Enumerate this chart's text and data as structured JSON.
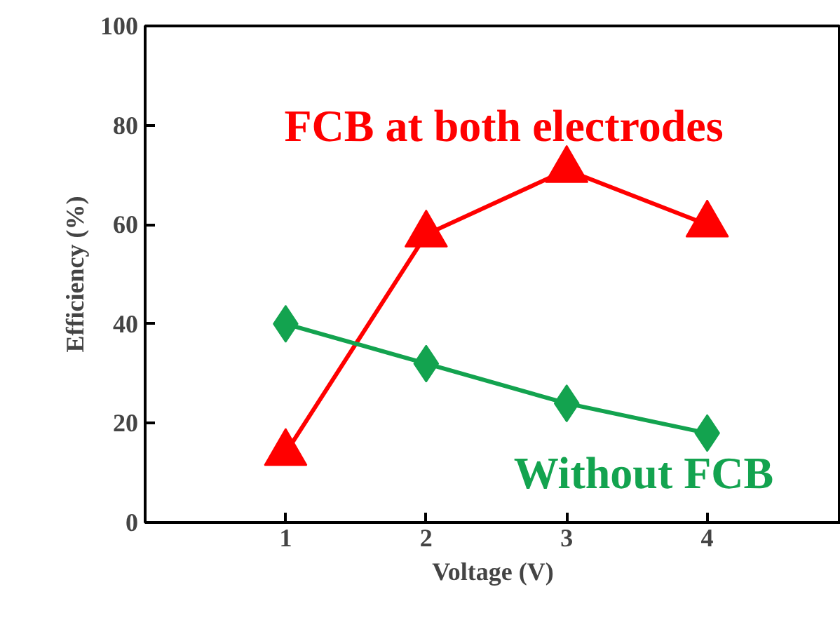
{
  "chart_data": {
    "type": "line",
    "xlabel": "Voltage (V)",
    "ylabel": "Efficiency (%)",
    "x": [
      1,
      2,
      3,
      4
    ],
    "xlim": [
      0,
      4.95
    ],
    "xticks": [
      1,
      2,
      3,
      4
    ],
    "ylim": [
      0,
      100
    ],
    "yticks": [
      0,
      20,
      40,
      60,
      80,
      100
    ],
    "grid": false,
    "legend": false,
    "series": [
      {
        "name": "FCB at both electrodes",
        "color": "#ff0000",
        "marker": "triangle",
        "values": [
          14,
          58,
          71,
          60
        ]
      },
      {
        "name": "Without FCB",
        "color": "#13a34f",
        "marker": "diamond",
        "values": [
          40,
          32,
          24,
          18
        ]
      }
    ]
  }
}
